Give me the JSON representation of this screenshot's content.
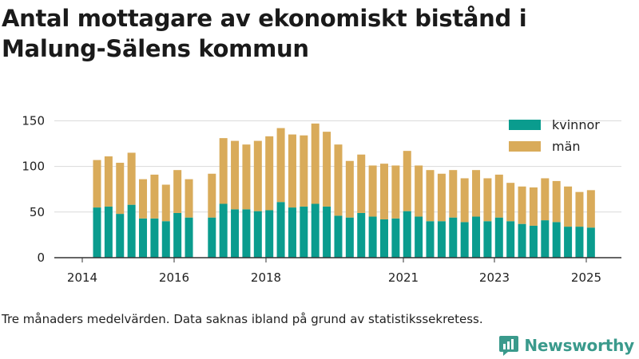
{
  "title": "Antal mottagare av ekonomiskt bistånd i Malung-Sälens kommun",
  "footnote": "Tre månaders medelvärden. Data saknas ibland på grund av statistikssekretess.",
  "brand": "Newsworthy",
  "colors": {
    "kvinnor": "#0a9c8e",
    "man": "#d9ab5a",
    "grid": "#d9d9d9",
    "axis": "#333333"
  },
  "chart_data": {
    "type": "bar",
    "stacked": true,
    "x_tick_labels": [
      "2014",
      "2016",
      "2018",
      "2021",
      "2023",
      "2025"
    ],
    "y_ticks": [
      0,
      50,
      100,
      150
    ],
    "ylim": [
      0,
      160
    ],
    "legend": {
      "position": "top-right",
      "entries": [
        "kvinnor",
        "män"
      ]
    },
    "categories": [
      "2014-04",
      "2014-07",
      "2014-10",
      "2015-01",
      "2015-04",
      "2015-07",
      "2015-10",
      "2016-01",
      "2016-04",
      "2016-07",
      "2016-10",
      "2017-01",
      "2017-04",
      "2017-07",
      "2017-10",
      "2018-01",
      "2018-04",
      "2018-07",
      "2018-10",
      "2019-01",
      "2019-04",
      "2019-07",
      "2019-10",
      "2020-01",
      "2020-04",
      "2020-07",
      "2020-10",
      "2021-01",
      "2021-04",
      "2021-07",
      "2021-10",
      "2022-01",
      "2022-04",
      "2022-07",
      "2022-10",
      "2023-01",
      "2023-04",
      "2023-07",
      "2023-10",
      "2024-01",
      "2024-04",
      "2024-07",
      "2024-10",
      "2025-01"
    ],
    "series": [
      {
        "name": "kvinnor",
        "values": [
          55,
          56,
          48,
          58,
          43,
          43,
          40,
          49,
          44,
          null,
          44,
          59,
          53,
          53,
          51,
          52,
          61,
          55,
          56,
          59,
          56,
          46,
          44,
          49,
          45,
          42,
          43,
          51,
          45,
          40,
          40,
          44,
          39,
          45,
          40,
          44,
          40,
          37,
          35,
          41,
          39,
          34,
          34,
          33
        ]
      },
      {
        "name": "män",
        "values": [
          52,
          55,
          56,
          57,
          43,
          48,
          40,
          47,
          42,
          null,
          48,
          72,
          75,
          71,
          77,
          81,
          81,
          80,
          78,
          88,
          82,
          78,
          62,
          64,
          56,
          61,
          58,
          66,
          56,
          56,
          52,
          52,
          48,
          51,
          47,
          47,
          42,
          41,
          42,
          46,
          45,
          44,
          38,
          41
        ]
      }
    ]
  }
}
